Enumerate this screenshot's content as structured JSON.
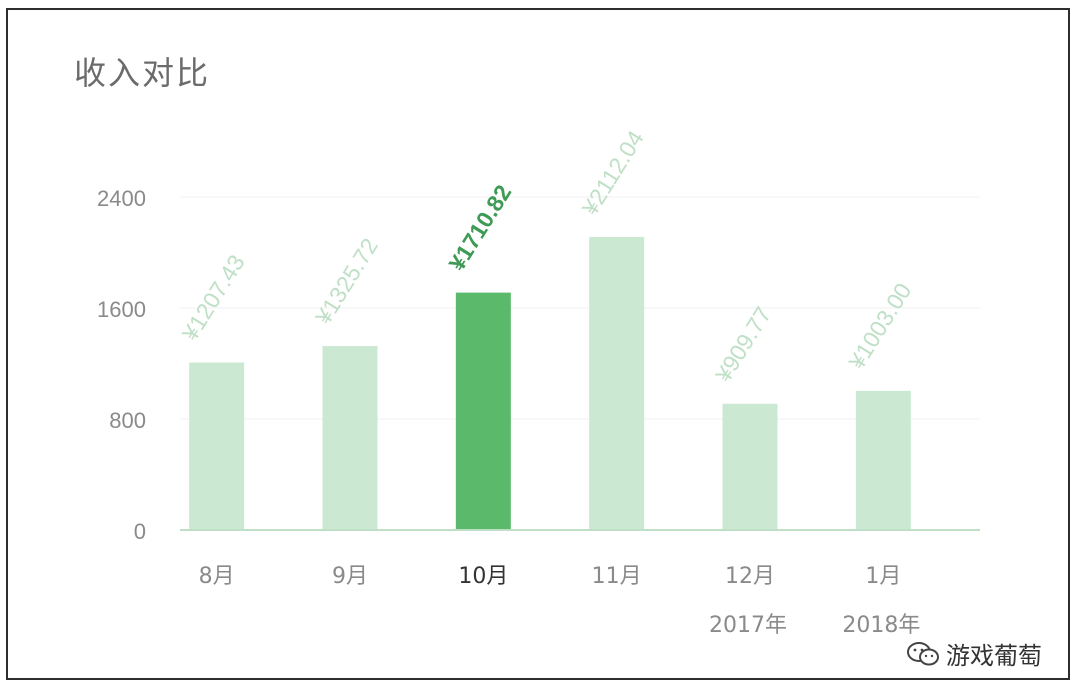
{
  "title": "收入对比",
  "watermark": {
    "text": "游戏葡萄",
    "icon": "wechat-bubbles-icon"
  },
  "colors": {
    "bar": "#cbe9d2",
    "bar_highlight": "#5ab96b",
    "label": "#bfe0c6",
    "label_highlight": "#3e9a55",
    "axis_text": "#8a8a8a",
    "axis_text_highlight": "#333333",
    "baseline": "#bfe0c6",
    "grid": "#f0f0f0"
  },
  "chart_data": {
    "type": "bar",
    "title": "收入对比",
    "xlabel": "",
    "ylabel": "",
    "categories": [
      "8月",
      "9月",
      "10月",
      "11月",
      "12月",
      "1月"
    ],
    "values": [
      1207.43,
      1325.72,
      1710.82,
      2112.04,
      909.77,
      1003.0
    ],
    "value_labels": [
      "¥1207.43",
      "¥1325.72",
      "¥1710.82",
      "¥2112.04",
      "¥909.77",
      "¥1003.00"
    ],
    "highlight_index": 2,
    "year_labels": [
      "",
      "",
      "",
      "",
      "2017年",
      "2018年"
    ],
    "yticks": [
      0,
      800,
      1600,
      2400
    ],
    "ylim": [
      0,
      2400
    ],
    "grid": true,
    "legend": "none"
  }
}
